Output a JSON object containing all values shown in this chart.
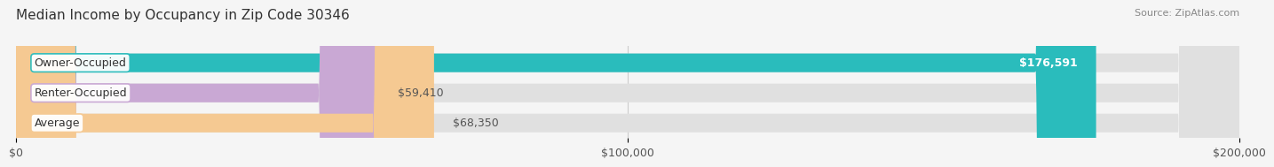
{
  "title": "Median Income by Occupancy in Zip Code 30346",
  "source": "Source: ZipAtlas.com",
  "categories": [
    "Owner-Occupied",
    "Renter-Occupied",
    "Average"
  ],
  "values": [
    176591,
    59410,
    68350
  ],
  "labels": [
    "$176,591",
    "$59,410",
    "$68,350"
  ],
  "bar_colors": [
    "#2abcbc",
    "#c9a8d4",
    "#f5c992"
  ],
  "xlim": [
    0,
    200000
  ],
  "xticks": [
    0,
    100000,
    200000
  ],
  "xticklabels": [
    "$0",
    "$100,000",
    "$200,000"
  ],
  "background_color": "#f5f5f5",
  "bar_background_color": "#e0e0e0",
  "title_fontsize": 11,
  "label_fontsize": 9,
  "tick_fontsize": 9,
  "source_fontsize": 8
}
